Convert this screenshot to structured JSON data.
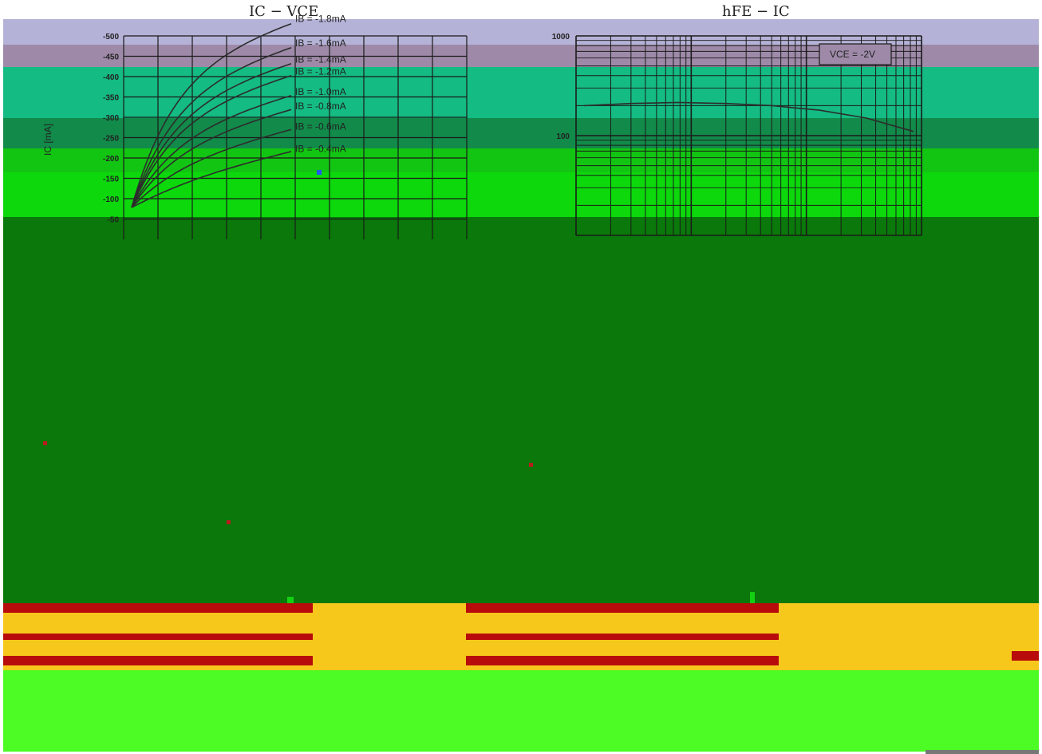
{
  "chart_data": [
    {
      "type": "line",
      "title": "IC − VCE",
      "ylabel": "IC [mA]",
      "ylim": [
        -500,
        0
      ],
      "y_ticks": [
        "-500",
        "-450",
        "-400",
        "-350",
        "-300",
        "-250",
        "-200",
        "-150",
        "-100",
        "-50"
      ],
      "grid": true,
      "curve_labels": [
        "IB = -1.8mA",
        "IB = -1.6mA",
        "IB = -1.4mA",
        "IB = -1.2mA",
        "IB = -1.0mA",
        "IB = -0.8mA",
        "IB = -0.6mA",
        "IB = -0.4mA"
      ],
      "series": [
        {
          "name": "IB = -1.8mA",
          "values": [
            -460
          ]
        },
        {
          "name": "IB = -1.6mA",
          "values": [
            -400
          ]
        },
        {
          "name": "IB = -1.4mA",
          "values": [
            -360
          ]
        },
        {
          "name": "IB = -1.2mA",
          "values": [
            -330
          ]
        },
        {
          "name": "IB = -1.0mA",
          "values": [
            -280
          ]
        },
        {
          "name": "IB = -0.8mA",
          "values": [
            -245
          ]
        },
        {
          "name": "IB = -0.6mA",
          "values": [
            -195
          ]
        },
        {
          "name": "IB = -0.4mA",
          "values": [
            -140
          ]
        }
      ]
    },
    {
      "type": "line",
      "title": "hFE − IC",
      "y_scale": "log",
      "y_ticks": [
        "1000",
        "100"
      ],
      "annotation": "VCE = -2V",
      "grid": true,
      "series": [
        {
          "values": [
            200,
            210,
            215,
            210,
            200,
            180,
            150,
            110
          ]
        }
      ]
    }
  ],
  "colors": {
    "lavender": "#b4b2d6",
    "mauve": "#9e8aa8",
    "teal": "#14bb82",
    "darkgreen": "#128a4a",
    "green": "#13c513",
    "lime": "#0cd80c",
    "deepgreen": "#0a780a",
    "red": "#b80c0c",
    "gold": "#f7c81c",
    "brightgreen": "#4cfc24",
    "curve": "#2c2c2c"
  }
}
